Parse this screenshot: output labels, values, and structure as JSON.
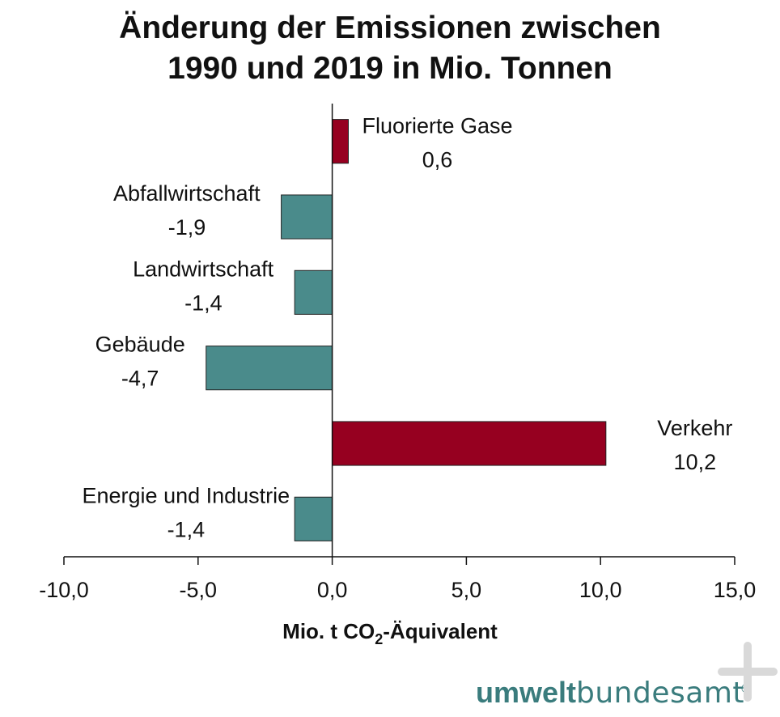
{
  "chart_data": {
    "type": "bar",
    "orientation": "horizontal",
    "title": [
      "Änderung der Emissionen zwischen",
      "1990 und 2019 in Mio. Tonnen"
    ],
    "xlabel": {
      "main": "Mio. t CO",
      "sub": "2",
      "rest": "-Äquivalent"
    },
    "xlim": [
      -10,
      15
    ],
    "xticks": [
      -10,
      -5,
      0,
      5,
      10,
      15
    ],
    "xtick_labels": [
      "-10,0",
      "-5,0",
      "0,0",
      "5,0",
      "10,0",
      "15,0"
    ],
    "categories": [
      "Fluorierte Gase",
      "Abfallwirtschaft",
      "Landwirtschaft",
      "Gebäude",
      "Verkehr",
      "Energie und Industrie"
    ],
    "values": [
      0.6,
      -1.9,
      -1.4,
      -4.7,
      10.2,
      -1.4
    ],
    "value_labels": [
      "0,6",
      "-1,9",
      "-1,4",
      "-4,7",
      "10,2",
      "-1,4"
    ],
    "colors": {
      "positive": "#960020",
      "negative": "#4a8b8b",
      "axis": "#111111"
    },
    "grid": false,
    "legend": "none"
  },
  "logo": {
    "bold": "umwelt",
    "thin": "bundesamt",
    "mark": "©"
  },
  "icons": {
    "corner": "plus-icon"
  }
}
